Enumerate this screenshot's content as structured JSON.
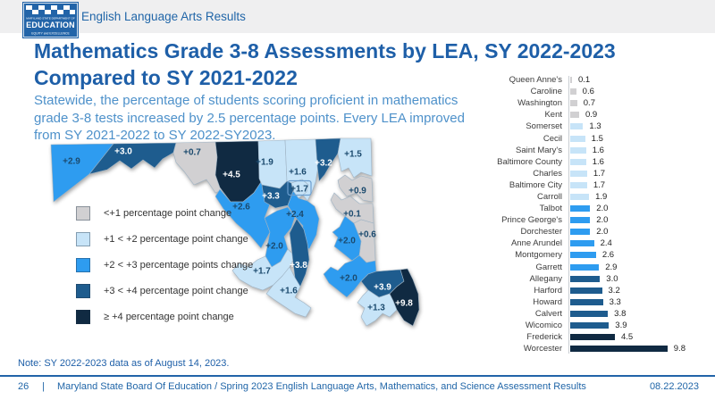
{
  "header": {
    "section_title": "English Language Arts Results",
    "logo": {
      "line1": "MARYLAND STATE DEPARTMENT OF",
      "line2": "EDUCATION",
      "line3": "EQUITY and EXCELLENCE"
    }
  },
  "title": {
    "line1": "Mathematics Grade 3-8 Assessments by LEA, SY 2022-2023",
    "line2": "Compared to SY 2021-2022"
  },
  "subtitle": {
    "line1": "Statewide, the percentage of students scoring proficient in mathematics",
    "line2": "grade 3-8 tests increased by 2.5 percentage points. Every LEA improved",
    "line3": "from SY 2021-2022 to SY 2022-SY2023."
  },
  "legend": {
    "items": [
      {
        "swatch": "gray",
        "label": "<+1 percentage point change"
      },
      {
        "swatch": "light_blue",
        "label": "+1 < +2 percentage point change"
      },
      {
        "swatch": "medium_blue",
        "label": "+2 < +3 percentage points change"
      },
      {
        "swatch": "dark_blue",
        "label": "+3 < +4 percentage point change"
      },
      {
        "swatch": "navy",
        "label": "≥ +4 percentage point change"
      }
    ]
  },
  "chart_data": {
    "type": "bar",
    "orientation": "horizontal",
    "unit": "percentage point change",
    "categories": [
      "Queen Anne's",
      "Caroline",
      "Washington",
      "Kent",
      "Somerset",
      "Cecil",
      "Saint Mary's",
      "Baltimore County",
      "Charles",
      "Baltimore City",
      "Carroll",
      "Talbot",
      "Prince George's",
      "Dorchester",
      "Anne Arundel",
      "Montgomery",
      "Garrett",
      "Allegany",
      "Harford",
      "Howard",
      "Calvert",
      "Wicomico",
      "Frederick",
      "Worcester"
    ],
    "values": [
      0.1,
      0.6,
      0.7,
      0.9,
      1.3,
      1.5,
      1.6,
      1.6,
      1.7,
      1.7,
      1.9,
      2.0,
      2.0,
      2.0,
      2.4,
      2.6,
      2.9,
      3.0,
      3.2,
      3.3,
      3.8,
      3.9,
      4.5,
      9.8
    ],
    "xlim": [
      0,
      10.5
    ],
    "color_rule": "value<1 gray; 1-2 light blue; 2-3 medium blue; 3-4 dark blue; >=4 navy",
    "map_label_prefix": "+"
  },
  "note": "Note: SY 2022-2023 data as of August 14, 2023.",
  "footer": {
    "page": "26",
    "separator": "|",
    "text": "Maryland State Board Of Education / Spring 2023 English Language Arts, Mathematics, and Science Assessment Results",
    "date": "08.22.2023"
  },
  "colors": {
    "gray": "#d1d0d2",
    "light_blue": "#c7e4f8",
    "medium_blue": "#2e9cf0",
    "dark_blue": "#1e5c8e",
    "navy": "#102a42",
    "title_blue": "#1e5fa8",
    "subtitle_blue": "#4e91ca",
    "accent_blue": "#2264a8",
    "map_label_dark": "#1b4a6e",
    "map_label_light": "#ffffff"
  }
}
